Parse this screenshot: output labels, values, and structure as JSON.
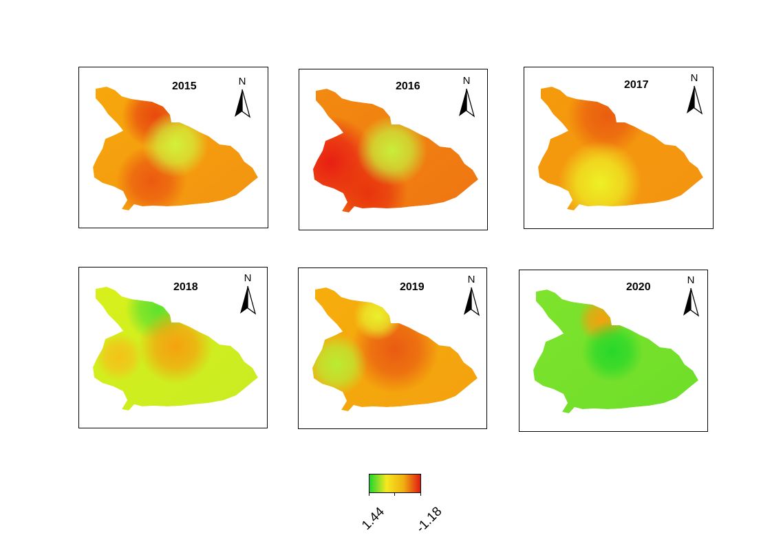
{
  "panels": [
    {
      "year": "2015",
      "base": "#f7a80c",
      "mid": "#f29211",
      "spots": [
        {
          "kind": "hot",
          "color": "#e84a0e"
        },
        {
          "kind": "hot",
          "color": "#ec5a10"
        },
        {
          "kind": "cool",
          "color": "#d2f03a"
        }
      ]
    },
    {
      "year": "2016",
      "base": "#f28a10",
      "mid": "#ef7512",
      "spots": [
        {
          "kind": "hot",
          "color": "#e81f12"
        },
        {
          "kind": "hot",
          "color": "#e8330e"
        },
        {
          "kind": "cool",
          "color": "#c8ee3a"
        }
      ]
    },
    {
      "year": "2017",
      "base": "#f59a0c",
      "mid": "#f39410",
      "spots": [
        {
          "kind": "hot",
          "color": "#ea5d10"
        },
        {
          "kind": "cool",
          "color": "#eef025"
        }
      ]
    },
    {
      "year": "2018",
      "base": "#d8f01c",
      "mid": "#c8ec22",
      "spots": [
        {
          "kind": "cool",
          "color": "#5fe12e"
        },
        {
          "kind": "hot",
          "color": "#f5a20e"
        },
        {
          "kind": "hot",
          "color": "#f4c21a"
        }
      ]
    },
    {
      "year": "2019",
      "base": "#f6ae0c",
      "mid": "#f3a10e",
      "spots": [
        {
          "kind": "hot",
          "color": "#ea5b12"
        },
        {
          "kind": "cool",
          "color": "#b9ec34"
        },
        {
          "kind": "cool",
          "color": "#eaf02c"
        }
      ]
    },
    {
      "year": "2020",
      "base": "#7ee32c",
      "mid": "#6ede2a",
      "spots": [
        {
          "kind": "hot",
          "color": "#f4a00e"
        },
        {
          "kind": "cool",
          "color": "#28d82a"
        }
      ]
    }
  ],
  "north_label": "N",
  "legend": {
    "colors": [
      "#1fd62e",
      "#f5e820",
      "#f0b010",
      "#e01a12"
    ],
    "min_label": "1.44",
    "max_label": "-1.18"
  }
}
